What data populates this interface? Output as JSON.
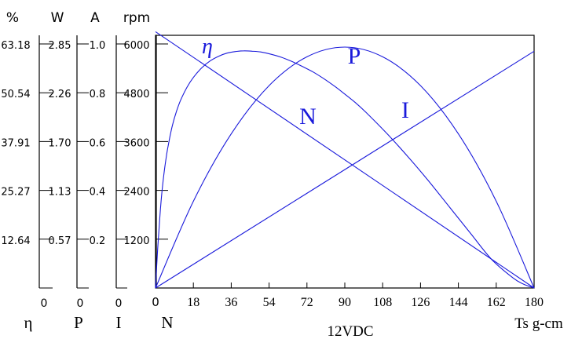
{
  "chart_data": {
    "type": "line",
    "x_ticks": [
      "0",
      "18",
      "36",
      "54",
      "72",
      "90",
      "108",
      "126",
      "144",
      "162",
      "180"
    ],
    "xlabel": "Ts g-cm",
    "subtitle": "12VDC",
    "xlim": [
      0,
      180
    ],
    "scales": [
      {
        "unit": "%",
        "symbol": "η",
        "ticks": [
          "63.18",
          "50.54",
          "37.91",
          "25.27",
          "12.64"
        ],
        "zero": "0"
      },
      {
        "unit": "W",
        "symbol": "P",
        "ticks": [
          "2.85",
          "2.26",
          "1.70",
          "1.13",
          "0.57"
        ],
        "zero": "0"
      },
      {
        "unit": "A",
        "symbol": "I",
        "ticks": [
          "1.0",
          "0.8",
          "0.6",
          "0.4",
          "0.2"
        ],
        "zero": "0"
      },
      {
        "unit": "rpm",
        "symbol": "N",
        "ticks": [
          "6000",
          "4800",
          "3600",
          "2400",
          "1200"
        ]
      }
    ],
    "series": [
      {
        "name": "η",
        "unit": "%",
        "x": [
          0,
          1,
          2,
          3,
          4,
          5,
          6,
          8,
          10,
          12,
          15,
          18,
          22,
          26,
          30,
          34,
          38,
          42,
          46,
          50,
          55,
          60,
          65,
          70,
          75,
          80,
          85,
          90,
          95,
          100,
          110,
          120,
          130,
          140,
          150,
          160,
          170,
          175,
          180
        ],
        "values": [
          0,
          10,
          18,
          24.5,
          29.5,
          33.5,
          36.8,
          42,
          45.8,
          48.7,
          52,
          54.5,
          57,
          58.8,
          60,
          60.8,
          61.2,
          61.4,
          61.3,
          61.1,
          60.5,
          59.7,
          58.6,
          57.3,
          55.9,
          54.2,
          52.3,
          50.2,
          48,
          45.5,
          40,
          34,
          27.6,
          20.8,
          14,
          7.3,
          2.6,
          1.0,
          0
        ]
      },
      {
        "name": "P",
        "unit": "W",
        "x": [
          0,
          18,
          36,
          54,
          72,
          90,
          108,
          126,
          144,
          162,
          180
        ],
        "values": [
          0,
          1.013,
          1.8,
          2.363,
          2.7,
          2.813,
          2.7,
          2.363,
          1.8,
          1.013,
          0
        ]
      },
      {
        "name": "I",
        "unit": "A",
        "x": [
          0,
          180
        ],
        "values": [
          0,
          0.97
        ]
      },
      {
        "name": "N",
        "unit": "rpm",
        "x": [
          0,
          180
        ],
        "values": [
          6300,
          0
        ]
      }
    ],
    "curve_labels": [
      "η",
      "P",
      "N",
      "I"
    ],
    "colors": {
      "curves": "#1a1adb",
      "axes": "#000000"
    },
    "grid": false
  }
}
